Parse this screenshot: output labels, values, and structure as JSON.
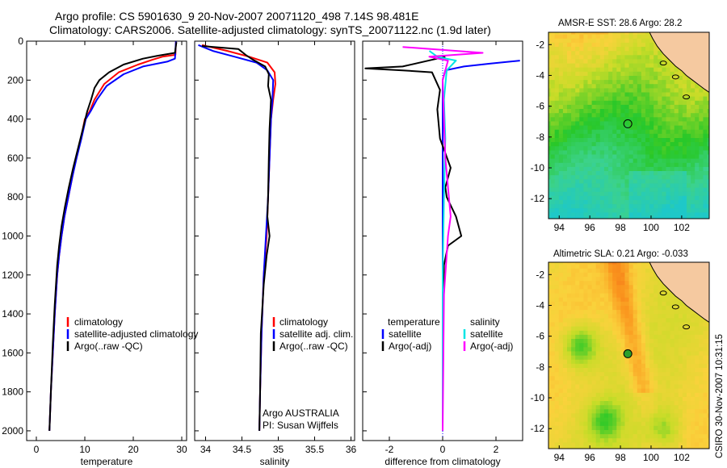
{
  "figure": {
    "title_line1": "Argo profile: CS 5901630_9 20-Nov-2007 20071120_498 7.14S 98.481E",
    "title_line2": "Climatology: CARS2006. Satellite-adjusted climatology: synTS_20071122.nc (1.9d later)",
    "side_text": "CSIRO 30-Nov-2007 10:31:15",
    "credit_line1": "Argo AUSTRALIA",
    "credit_line2": "PI: Susan Wijffels"
  },
  "colors": {
    "climatology": "#ff0000",
    "satellite": "#0000ff",
    "argo": "#000000",
    "diff_salinity_satellite": "#00e5e5",
    "diff_salinity_argo": "#ff00ff",
    "zero_line": "#0000ff",
    "land": "#f5c9a0"
  },
  "chart_data": [
    {
      "type": "line",
      "panel": "temperature",
      "xlabel": "temperature",
      "ylabel": "",
      "xlim": [
        -2,
        31
      ],
      "ylim": [
        2050,
        0
      ],
      "xticks": [
        0,
        10,
        20,
        30
      ],
      "yticks": [
        0,
        200,
        400,
        600,
        800,
        1000,
        1200,
        1400,
        1600,
        1800,
        2000
      ],
      "legend": [
        "climatology",
        "satellite-adjusted climatology",
        "Argo(..raw -QC)"
      ],
      "series": [
        {
          "name": "climatology",
          "color": "#ff0000",
          "x": [
            28.8,
            28.7,
            26,
            24,
            21,
            17,
            14,
            12,
            11,
            10,
            9.2,
            8.2,
            7.4,
            6.6,
            5.8,
            5.2,
            4.7,
            4.3,
            3.8,
            3.4,
            3.0,
            2.7
          ],
          "y": [
            0,
            70,
            80,
            95,
            120,
            160,
            220,
            300,
            360,
            400,
            500,
            600,
            700,
            800,
            900,
            1000,
            1100,
            1200,
            1400,
            1600,
            1800,
            2000
          ]
        },
        {
          "name": "satellite-adjusted climatology",
          "color": "#0000ff",
          "x": [
            28.8,
            28.6,
            27,
            22,
            18,
            14.5,
            12.5,
            11.2,
            10.2,
            9.3,
            8.3,
            7.4,
            6.6,
            5.8,
            5.2,
            4.7,
            4.3,
            3.8,
            3.4,
            3.0,
            2.7
          ],
          "y": [
            0,
            90,
            105,
            130,
            170,
            230,
            300,
            360,
            400,
            500,
            600,
            700,
            800,
            900,
            1000,
            1100,
            1200,
            1400,
            1600,
            1800,
            2000
          ]
        },
        {
          "name": "Argo(..raw -QC)",
          "color": "#000000",
          "x": [
            28.9,
            28.6,
            25,
            22,
            18,
            15,
            13,
            12,
            11.3,
            10.5,
            9.6,
            8.6,
            7.6,
            6.7,
            5.9,
            5.2,
            4.7,
            4.3,
            3.8,
            3.4,
            3.0,
            2.7
          ],
          "y": [
            5,
            60,
            75,
            90,
            120,
            160,
            200,
            240,
            300,
            360,
            450,
            550,
            650,
            750,
            850,
            950,
            1050,
            1150,
            1350,
            1550,
            1800,
            2000
          ]
        }
      ]
    },
    {
      "type": "line",
      "panel": "salinity",
      "xlabel": "salinity",
      "xlim": [
        33.85,
        36.05
      ],
      "ylim": [
        2050,
        0
      ],
      "xticks": [
        34,
        34.5,
        35,
        35.5,
        36
      ],
      "legend": [
        "climatology",
        "satellite adj. clim.",
        "Argo(..raw -QC)"
      ],
      "series": [
        {
          "name": "climatology",
          "color": "#ff0000",
          "x": [
            33.95,
            34.3,
            34.6,
            34.85,
            34.95,
            34.96,
            34.93,
            34.9,
            34.88,
            34.86,
            34.84,
            34.8,
            34.77,
            34.75,
            34.74
          ],
          "y": [
            20,
            50,
            80,
            110,
            160,
            220,
            300,
            400,
            600,
            800,
            1000,
            1200,
            1500,
            1800,
            2000
          ]
        },
        {
          "name": "satellite adj. clim.",
          "color": "#0000ff",
          "x": [
            33.9,
            34.1,
            34.4,
            34.7,
            34.85,
            34.93,
            34.92,
            34.9,
            34.88,
            34.86,
            34.83,
            34.8,
            34.77,
            34.75,
            34.74
          ],
          "y": [
            20,
            50,
            80,
            110,
            150,
            200,
            300,
            400,
            600,
            800,
            1000,
            1200,
            1500,
            1800,
            2000
          ]
        },
        {
          "name": "Argo(..raw -QC)",
          "color": "#000000",
          "x": [
            33.95,
            34.45,
            34.55,
            34.65,
            34.82,
            34.87,
            34.86,
            34.9,
            34.88,
            34.87,
            34.86,
            34.85,
            34.88,
            34.84,
            34.8,
            34.76,
            34.75,
            34.74
          ],
          "y": [
            25,
            40,
            70,
            95,
            130,
            170,
            230,
            300,
            450,
            600,
            800,
            900,
            1000,
            1100,
            1250,
            1500,
            1800,
            2000
          ]
        }
      ]
    },
    {
      "type": "line",
      "panel": "difference",
      "xlabel": "difference from climatology",
      "xlim": [
        -3,
        3
      ],
      "ylim": [
        2050,
        0
      ],
      "xticks": [
        -2,
        0,
        2
      ],
      "legend": [
        "temperature",
        "satellite",
        "Argo(-adj)",
        "salinity",
        "satellite",
        "Argo(-adj)"
      ],
      "series": [
        {
          "name": "temperature satellite",
          "color": "#0000ff",
          "x": [
            2.9,
            1.8,
            0.8,
            0.1,
            0,
            0,
            0
          ],
          "y": [
            100,
            115,
            130,
            150,
            200,
            600,
            2000
          ]
        },
        {
          "name": "temperature Argo(-adj)",
          "color": "#000000",
          "x": [
            0.1,
            -1.5,
            -2.9,
            -1.5,
            -0.4,
            -0.1,
            -0.2,
            -0.1,
            0.3,
            0.1,
            0.15,
            0.5,
            0.7,
            0.2,
            0.05,
            0,
            0
          ],
          "y": [
            80,
            130,
            140,
            150,
            160,
            250,
            350,
            500,
            650,
            750,
            800,
            900,
            1000,
            1050,
            1150,
            1400,
            2000
          ]
        },
        {
          "name": "salinity satellite",
          "color": "#00e5e5",
          "x": [
            -0.5,
            -0.2,
            0.5,
            0.15,
            0.05,
            0.1,
            0.05,
            0,
            0
          ],
          "y": [
            50,
            80,
            100,
            150,
            300,
            500,
            800,
            1200,
            2000
          ]
        },
        {
          "name": "salinity Argo(-adj)",
          "color": "#ff00ff",
          "x": [
            -1.5,
            1.5,
            -0.5,
            0.2,
            0,
            0.05,
            0.1,
            0.3,
            0.2,
            0.05,
            0
          ],
          "y": [
            30,
            60,
            80,
            100,
            200,
            400,
            600,
            900,
            1000,
            1300,
            2000
          ]
        }
      ]
    },
    {
      "type": "heatmap",
      "panel": "sst_map",
      "title": "AMSR-E SST: 28.6 Argo: 28.2",
      "xlim": [
        93.3,
        103.8
      ],
      "ylim": [
        -13.3,
        -1.2
      ],
      "xticks": [
        94,
        96,
        98,
        100,
        102
      ],
      "yticks": [
        -2,
        -4,
        -6,
        -8,
        -10,
        -12
      ],
      "argo_position": {
        "lon": 98.481,
        "lat": -7.14
      }
    },
    {
      "type": "heatmap",
      "panel": "sla_map",
      "title": "Altimetric SLA: 0.21 Argo: -0.033",
      "xlim": [
        93.3,
        103.8
      ],
      "ylim": [
        -13.3,
        -1.2
      ],
      "xticks": [
        94,
        96,
        98,
        100,
        102
      ],
      "yticks": [
        -2,
        -4,
        -6,
        -8,
        -10,
        -12
      ],
      "argo_position": {
        "lon": 98.481,
        "lat": -7.14
      }
    }
  ]
}
